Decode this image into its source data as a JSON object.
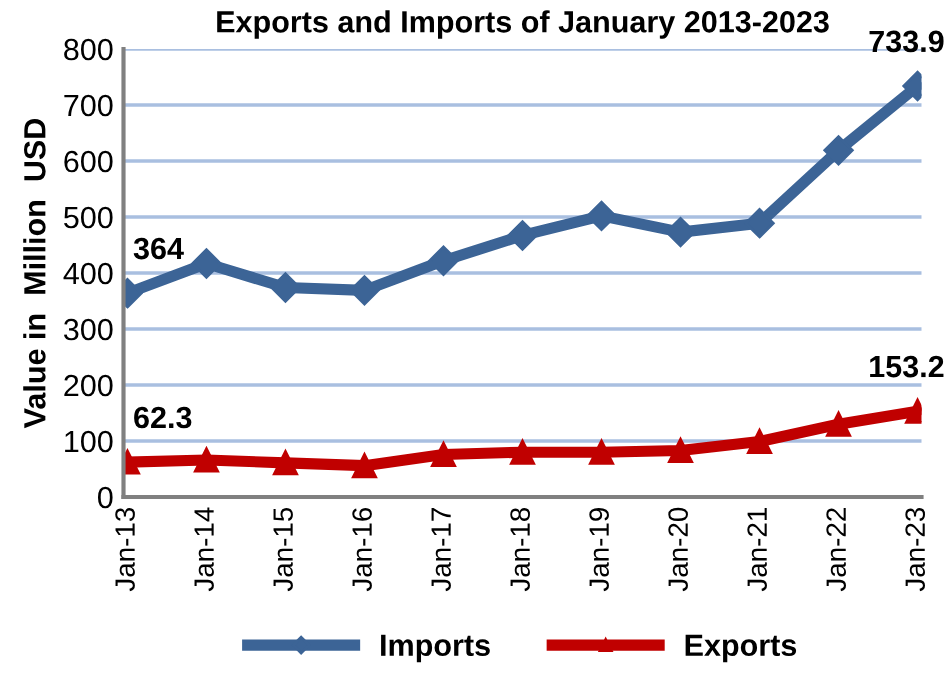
{
  "chart_data": {
    "type": "line",
    "title": "Exports and Imports of January 2013-2023",
    "ylabel": "Value in  Million  USD",
    "categories": [
      "Jan-13",
      "Jan-14",
      "Jan-15",
      "Jan-16",
      "Jan-17",
      "Jan-18",
      "Jan-19",
      "Jan-20",
      "Jan-21",
      "Jan-22",
      "Jan-23"
    ],
    "series": [
      {
        "name": "Imports",
        "color": "#3c6496",
        "marker": "diamond",
        "values": [
          364,
          417,
          374,
          369,
          422,
          467,
          502,
          473,
          489,
          619,
          733.9
        ],
        "value_labels": [
          "364",
          null,
          null,
          null,
          null,
          null,
          null,
          null,
          null,
          null,
          "733.9"
        ]
      },
      {
        "name": "Exports",
        "color": "#c00000",
        "marker": "triangle",
        "values": [
          62.3,
          66,
          61,
          56,
          76,
          80,
          80,
          83,
          99,
          130,
          153.2
        ],
        "value_labels": [
          "62.3",
          null,
          null,
          null,
          null,
          null,
          null,
          null,
          null,
          null,
          "153.2"
        ]
      }
    ],
    "ylim": [
      0,
      800
    ],
    "yticks": [
      0,
      100,
      200,
      300,
      400,
      500,
      600,
      700,
      800
    ],
    "grid": "y",
    "legend": "bottom",
    "line_style": "solid"
  }
}
